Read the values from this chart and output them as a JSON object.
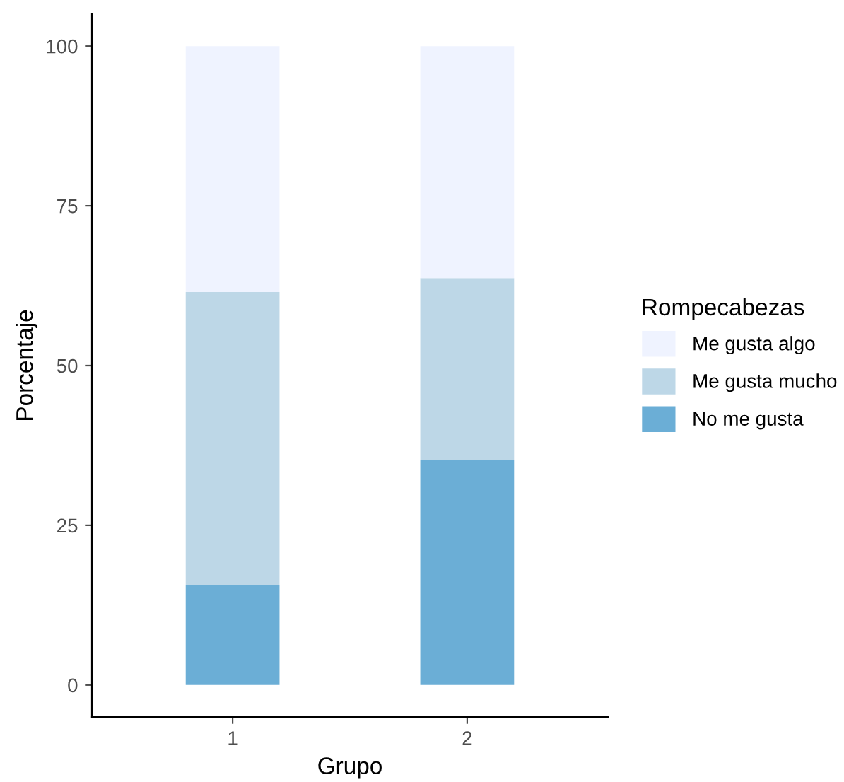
{
  "chart_data": {
    "type": "bar",
    "stacked": true,
    "xlabel": "Grupo",
    "ylabel": "Porcentaje",
    "legend_title": "Rompecabezas",
    "legend": "right",
    "grid": false,
    "categories": [
      "1",
      "2"
    ],
    "series": [
      {
        "name": "No me gusta",
        "color": "#6baed6",
        "values": [
          15.7,
          35.2
        ]
      },
      {
        "name": "Me gusta mucho",
        "color": "#bdd7e7",
        "values": [
          45.8,
          28.5
        ]
      },
      {
        "name": "Me gusta algo",
        "color": "#eff3ff",
        "values": [
          38.5,
          36.3
        ]
      }
    ],
    "ylim": [
      -5,
      105
    ],
    "yticks": [
      0,
      25,
      50,
      75,
      100
    ]
  }
}
